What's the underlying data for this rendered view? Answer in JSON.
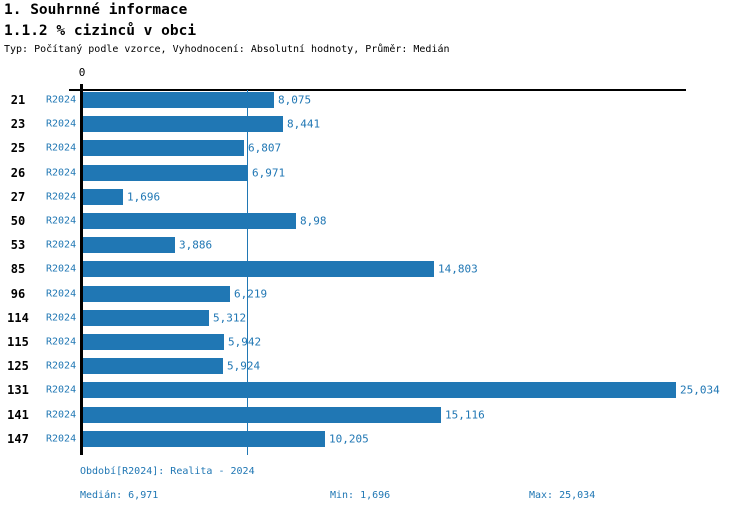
{
  "header": {
    "title": "1. Souhrnné informace",
    "subtitle": "1.1.2 % cizinců v obci",
    "meta": "Typ: Počítaný podle vzorce, Vyhodnocení: Absolutní hodnoty, Průměr: Medián"
  },
  "chart_data": {
    "type": "bar",
    "orientation": "horizontal",
    "title": "1.1.2 % cizinců v obci",
    "xlabel": "",
    "ylabel": "",
    "xlim": [
      0,
      25.5
    ],
    "axis_zero_tick_label": "0",
    "grid": false,
    "legend_position": "none",
    "series_label": "R2024",
    "categories": [
      "21",
      "23",
      "25",
      "26",
      "27",
      "50",
      "53",
      "85",
      "96",
      "114",
      "115",
      "125",
      "131",
      "141",
      "147"
    ],
    "values": [
      8.075,
      8.441,
      6.807,
      6.971,
      1.696,
      8.98,
      3.886,
      14.803,
      6.219,
      5.312,
      5.942,
      5.924,
      25.034,
      15.116,
      10.205
    ],
    "value_labels": [
      "8,075",
      "8,441",
      "6,807",
      "6,971",
      "1,696",
      "8,98",
      "3,886",
      "14,803",
      "6,219",
      "5,312",
      "5,942",
      "5,924",
      "25,034",
      "15,116",
      "10,205"
    ],
    "median_value": 6.971,
    "bar_color": "#2077b4",
    "median_line_color": "#2077b4",
    "axis_color": "#000000"
  },
  "footer": {
    "period": "Období[R2024]: Realita - 2024",
    "median": "Medián: 6,971",
    "min": "Min: 1,696",
    "max": "Max: 25,034"
  }
}
